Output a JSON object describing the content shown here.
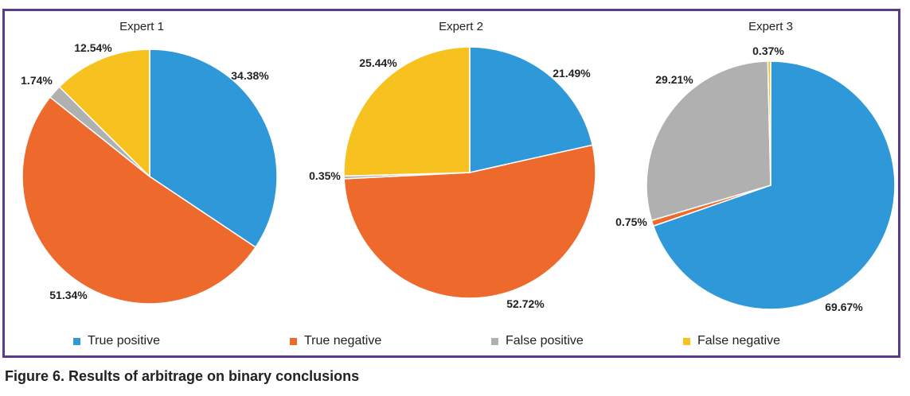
{
  "categories": [
    "True positive",
    "True negative",
    "False positive",
    "False negative"
  ],
  "colors": {
    "true_positive": "#2f98d8",
    "true_negative": "#ee6a2c",
    "false_positive": "#b0b0b0",
    "false_negative": "#f7c21f",
    "border": "#5b3a8e"
  },
  "chart_data": [
    {
      "type": "pie",
      "title": "Expert 1",
      "series": [
        {
          "label": "True positive",
          "value": 34.38,
          "text": "34.38%"
        },
        {
          "label": "True negative",
          "value": 51.34,
          "text": "51.34%"
        },
        {
          "label": "False positive",
          "value": 1.74,
          "text": "1.74%"
        },
        {
          "label": "False negative",
          "value": 12.54,
          "text": "12.54%"
        }
      ],
      "legend": "bottom"
    },
    {
      "type": "pie",
      "title": "Expert 2",
      "series": [
        {
          "label": "True positive",
          "value": 21.49,
          "text": "21.49%"
        },
        {
          "label": "True negative",
          "value": 52.72,
          "text": "52.72%"
        },
        {
          "label": "False positive",
          "value": 0.35,
          "text": "0.35%"
        },
        {
          "label": "False negative",
          "value": 25.44,
          "text": "25.44%"
        }
      ],
      "legend": "bottom"
    },
    {
      "type": "pie",
      "title": "Expert 3",
      "series": [
        {
          "label": "True positive",
          "value": 69.67,
          "text": "69.67%"
        },
        {
          "label": "True negative",
          "value": 0.75,
          "text": "0.75%"
        },
        {
          "label": "False positive",
          "value": 29.21,
          "text": "29.21%"
        },
        {
          "label": "False negative",
          "value": 0.37,
          "text": "0.37%"
        }
      ],
      "legend": "bottom"
    }
  ],
  "caption": "Figure 6. Results of arbitrage on binary conclusions"
}
